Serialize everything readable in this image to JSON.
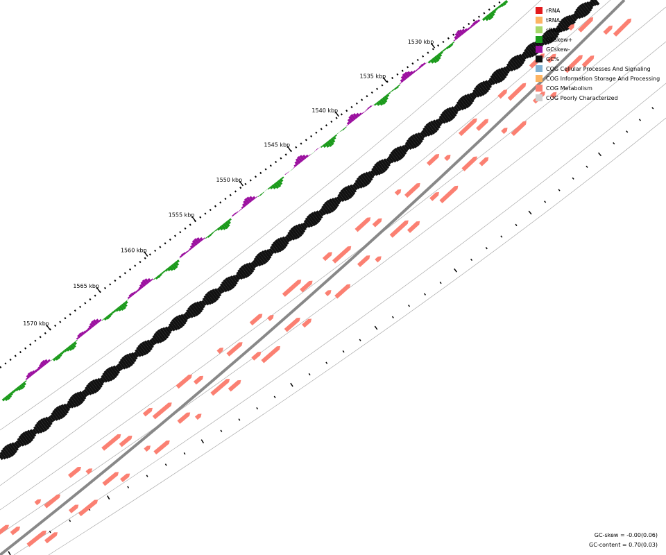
{
  "ruler": {
    "labels": [
      "1530 kbp",
      "1535 kbp",
      "1540 kbp",
      "1545 kbp",
      "1550 kbp",
      "1555 kbp",
      "1560 kbp",
      "1565 kbp",
      "1570 kbp"
    ]
  },
  "legend": {
    "items": [
      {
        "label": "rRNA",
        "color": "#e31a1c"
      },
      {
        "label": "tRNA",
        "color": "#fdb462"
      },
      {
        "label": "sRNA",
        "color": "#a6d96a"
      },
      {
        "label": "GCskew+",
        "color": "#1a9a1a"
      },
      {
        "label": "GCskew-",
        "color": "#9b0f9f"
      },
      {
        "label": "GC%",
        "color": "#111111"
      },
      {
        "label": "COG Cellular Processes And Signaling",
        "color": "#80b1d3"
      },
      {
        "label": "COG Information Storage And Processing",
        "color": "#fdb462"
      },
      {
        "label": "COG Metabolism",
        "color": "#fb8072"
      },
      {
        "label": "COG Poorly Characterized",
        "color": "#d0d0d0"
      }
    ]
  },
  "stats": {
    "gc_skew": "GC-skew = -0.00(0.06)",
    "gc_content": "GC-content = 0.70(0.03)"
  }
}
